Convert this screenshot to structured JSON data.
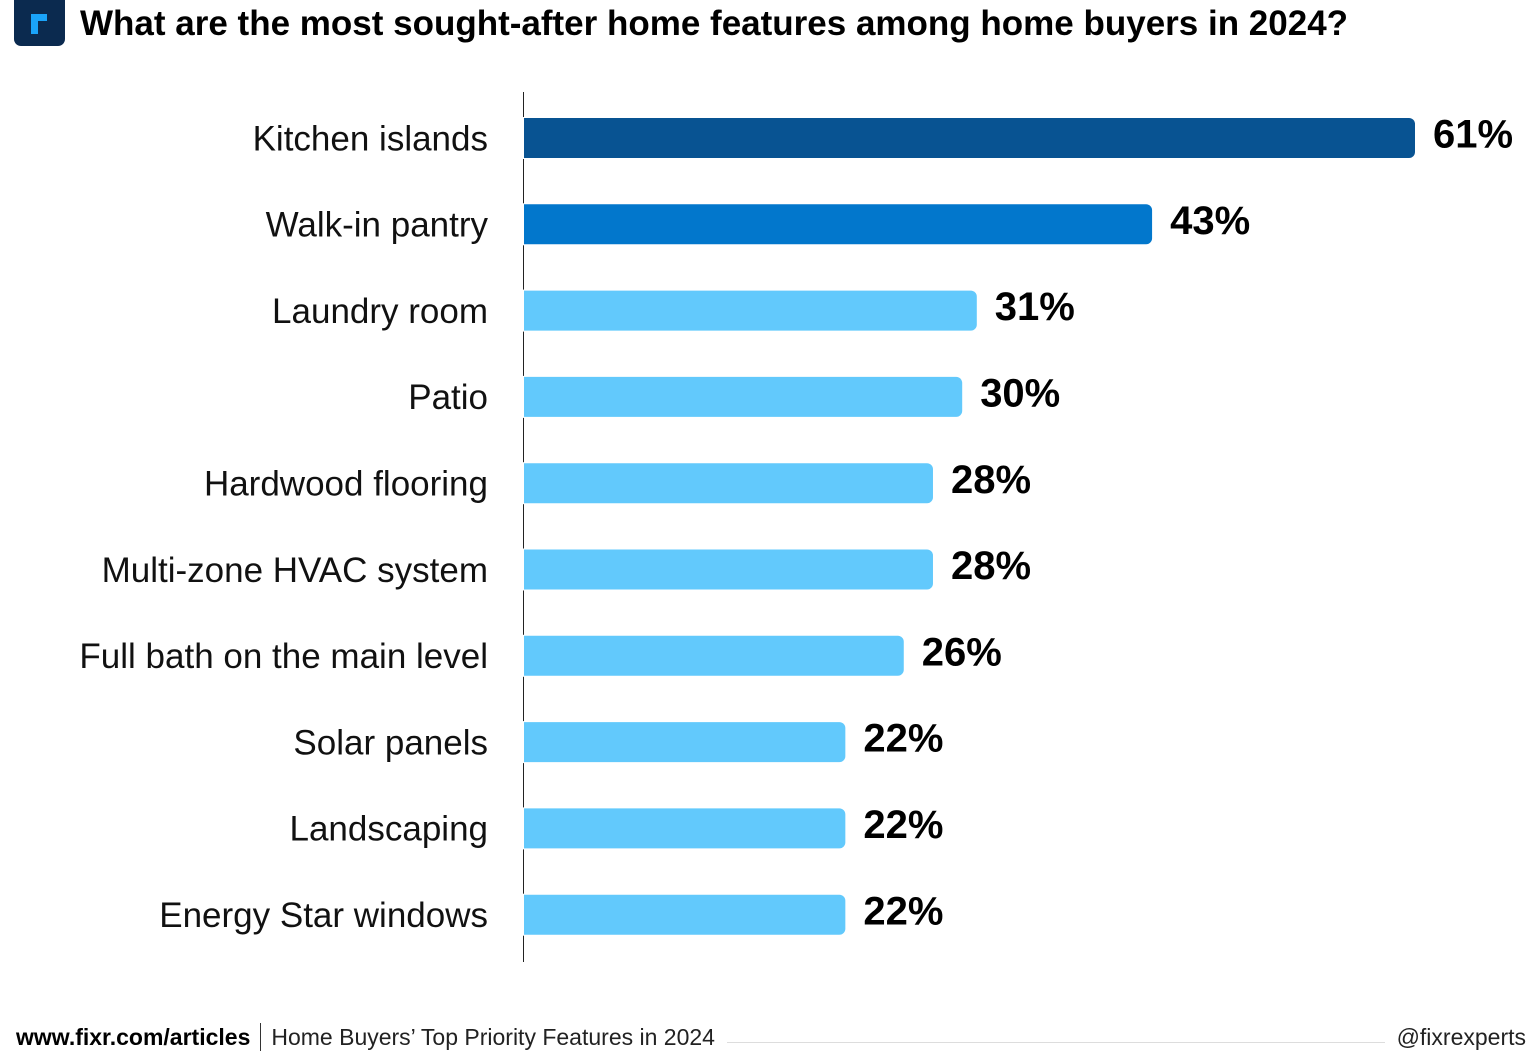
{
  "title": "What are the most sought-after home features among home buyers in 2024?",
  "logo": {
    "text": "r",
    "bg": "#0b2a4f",
    "fg": "#1aa3f9"
  },
  "chart_data": {
    "type": "bar",
    "orientation": "horizontal",
    "categories": [
      "Kitchen islands",
      "Walk-in pantry",
      "Laundry room",
      "Patio",
      "Hardwood flooring",
      "Multi-zone HVAC system",
      "Full bath on the main level",
      "Solar panels",
      "Landscaping",
      "Energy Star windows"
    ],
    "values": [
      61,
      43,
      31,
      30,
      28,
      28,
      26,
      22,
      22,
      22
    ],
    "value_labels": [
      "61%",
      "43%",
      "31%",
      "30%",
      "28%",
      "28%",
      "26%",
      "22%",
      "22%",
      "22%"
    ],
    "colors": [
      "#085392",
      "#0277cc",
      "#62c9fc",
      "#62c9fc",
      "#62c9fc",
      "#62c9fc",
      "#62c9fc",
      "#62c9fc",
      "#62c9fc",
      "#62c9fc"
    ],
    "xlim": [
      0,
      61
    ],
    "grid": false
  },
  "footer": {
    "site": "www.fixr.com/articles",
    "source": "Home Buyers’ Top Priority Features in 2024",
    "handle": "@fixrexperts"
  }
}
